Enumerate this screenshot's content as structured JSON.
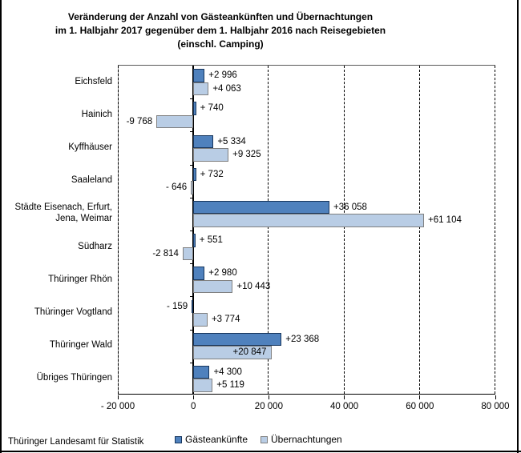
{
  "title_lines": [
    "Veränderung der Anzahl von Gästeankünften und Übernachtungen",
    "im 1. Halbjahr 2017 gegenüber dem 1. Halbjahr 2016 nach Reisegebieten",
    "(einschl. Camping)"
  ],
  "footer": "Thüringer Landesamt für Statistik",
  "colors": {
    "series1_fill": "#4f81bd",
    "series1_border": "#17365d",
    "series2_fill": "#b9cde5",
    "series2_border": "#7f7f7f",
    "axis": "#000000"
  },
  "chart_data": {
    "type": "bar",
    "orientation": "horizontal",
    "title": "Veränderung der Anzahl von Gästeankünften und Übernachtungen im 1. Halbjahr 2017 gegenüber dem 1. Halbjahr 2016 nach Reisegebieten (einschl. Camping)",
    "categories": [
      "Eichsfeld",
      "Hainich",
      "Kyffhäuser",
      "Saaleland",
      "Städte Eisenach, Erfurt,\nJena, Weimar",
      "Südharz",
      "Thüringer Rhön",
      "Thüringer Vogtland",
      "Thüringer Wald",
      "Übriges Thüringen"
    ],
    "series": [
      {
        "name": "Gästeankünfte",
        "color": "#4f81bd",
        "values": [
          2996,
          740,
          5334,
          732,
          36058,
          551,
          2980,
          -159,
          23368,
          4300
        ],
        "labels": [
          "+2 996",
          "+ 740",
          "+5 334",
          "+ 732",
          "+36 058",
          "+ 551",
          "+2 980",
          "- 159",
          "+23 368",
          "+4 300"
        ],
        "labels_inside": [
          false,
          false,
          false,
          false,
          false,
          false,
          false,
          false,
          false,
          false
        ]
      },
      {
        "name": "Übernachtungen",
        "color": "#b9cde5",
        "values": [
          4063,
          -9768,
          9325,
          -646,
          61104,
          -2814,
          10443,
          3774,
          20847,
          5119
        ],
        "labels": [
          "+4 063",
          "-9 768",
          "+9 325",
          "- 646",
          "+61 104",
          "-2 814",
          "+10 443",
          "+3 774",
          "+20 847",
          "+5 119"
        ],
        "labels_inside": [
          false,
          false,
          false,
          false,
          false,
          false,
          false,
          false,
          true,
          false
        ]
      }
    ],
    "xlim": [
      -20000,
      80000
    ],
    "xticks": [
      -20000,
      0,
      20000,
      40000,
      60000,
      80000
    ],
    "xtick_labels": [
      "- 20 000",
      "0",
      "20 000",
      "40 000",
      "60 000",
      "80 000"
    ],
    "grid": "vertical-dashed",
    "legend_position": "bottom"
  }
}
